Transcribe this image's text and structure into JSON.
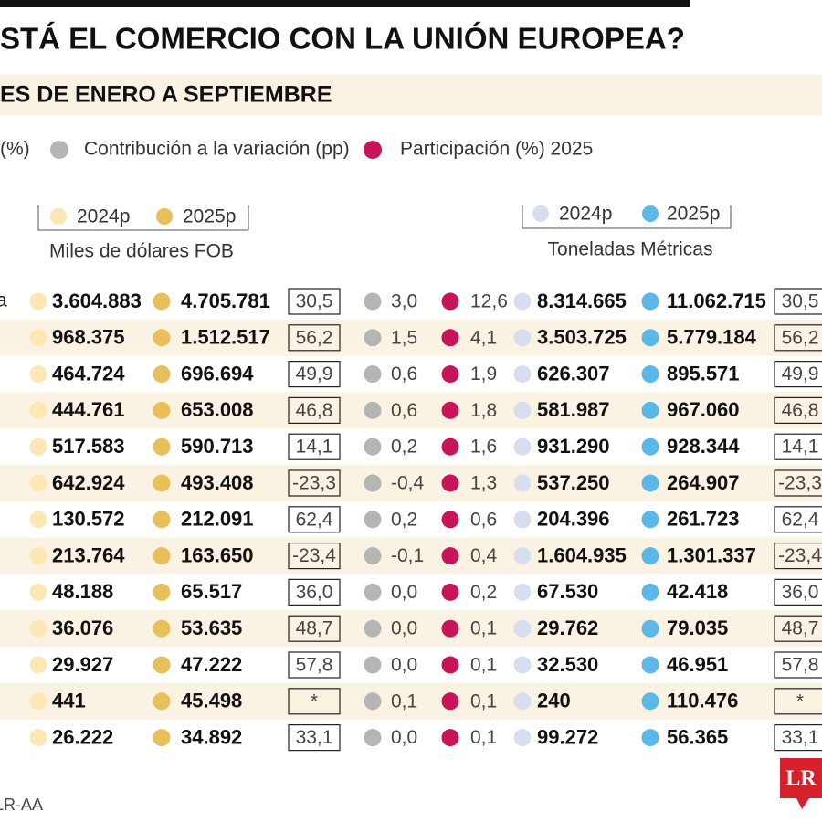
{
  "header": {
    "title": "STÁ EL COMERCIO CON LA UNIÓN EUROPEA?",
    "subtitle": "ES DE ENERO A SEPTIEMBRE"
  },
  "legend": {
    "variation": "(%)",
    "contribution": "Contribución a la variación (pp)",
    "participation": "Participación (%) 2025"
  },
  "columns": {
    "value_2024": "2024p",
    "value_2025": "2025p",
    "value_unit": "Miles de dólares FOB",
    "tons_2024": "2024p",
    "tons_2025": "2025p",
    "tons_unit": "Toneladas Métricas"
  },
  "table": {
    "first_label": "a",
    "rows": [
      [
        "3.604.883",
        "4.705.781",
        "30,5",
        "3,0",
        "12,6",
        "8.314.665",
        "11.062.715",
        "30,5"
      ],
      [
        "968.375",
        "1.512.517",
        "56,2",
        "1,5",
        "4,1",
        "3.503.725",
        "5.779.184",
        "56,2"
      ],
      [
        "464.724",
        "696.694",
        "49,9",
        "0,6",
        "1,9",
        "626.307",
        "895.571",
        "49,9"
      ],
      [
        "444.761",
        "653.008",
        "46,8",
        "0,6",
        "1,8",
        "581.987",
        "967.060",
        "46,8"
      ],
      [
        "517.583",
        "590.713",
        "14,1",
        "0,2",
        "1,6",
        "931.290",
        "928.344",
        "14,1"
      ],
      [
        "642.924",
        "493.408",
        "-23,3",
        "-0,4",
        "1,3",
        "537.250",
        "264.907",
        "-23,3"
      ],
      [
        "130.572",
        "212.091",
        "62,4",
        "0,2",
        "0,6",
        "204.396",
        "261.723",
        "62,4"
      ],
      [
        "213.764",
        "163.650",
        "-23,4",
        "-0,1",
        "0,4",
        "1.604.935",
        "1.301.337",
        "-23,4"
      ],
      [
        "48.188",
        "65.517",
        "36,0",
        "0,0",
        "0,2",
        "67.530",
        "42.418",
        "36,0"
      ],
      [
        "36.076",
        "53.635",
        "48,7",
        "0,0",
        "0,1",
        "29.762",
        "79.035",
        "48,7"
      ],
      [
        "29.927",
        "47.222",
        "57,8",
        "0,0",
        "0,1",
        "32.530",
        "46.951",
        "57,8"
      ],
      [
        "441",
        "45.498",
        "*",
        "0,1",
        "0,1",
        "240",
        "110.476",
        "*"
      ],
      [
        "26.222",
        "34.892",
        "33,1",
        "0,0",
        "0,1",
        "99.272",
        "56.365",
        "33,1"
      ]
    ]
  },
  "footer": {
    "source": "LR-AA",
    "logo": "LR"
  }
}
